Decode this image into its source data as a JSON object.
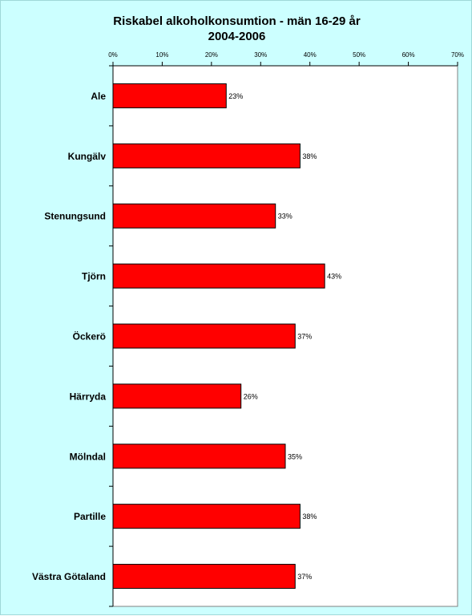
{
  "chart_data": {
    "type": "bar",
    "orientation": "horizontal",
    "title": [
      "Riskabel alkoholkonsumtion - män 16-29 år",
      "2004-2006"
    ],
    "categories": [
      "Ale",
      "Kungälv",
      "Stenungsund",
      "Tjörn",
      "Öckerö",
      "Härryda",
      "Mölndal",
      "Partille",
      "Västra Götaland"
    ],
    "values": [
      0.23,
      0.38,
      0.33,
      0.43,
      0.37,
      0.26,
      0.35,
      0.38,
      0.37
    ],
    "data_labels": [
      "23%",
      "38%",
      "33%",
      "43%",
      "37%",
      "26%",
      "35%",
      "38%",
      "37%"
    ],
    "x_ticks": [
      0,
      0.1,
      0.2,
      0.3,
      0.4,
      0.5,
      0.6,
      0.7
    ],
    "x_tick_labels": [
      "0%",
      "10%",
      "20%",
      "30%",
      "40%",
      "50%",
      "60%",
      "70%"
    ],
    "xlim": [
      0,
      0.7
    ],
    "x_axis_position": "top",
    "grid": false,
    "legend": "none",
    "colors": {
      "bar": "#ff0000",
      "bar_border": "#000000",
      "outer_background": "#ccffff",
      "plot_background": "#ffffff"
    }
  }
}
